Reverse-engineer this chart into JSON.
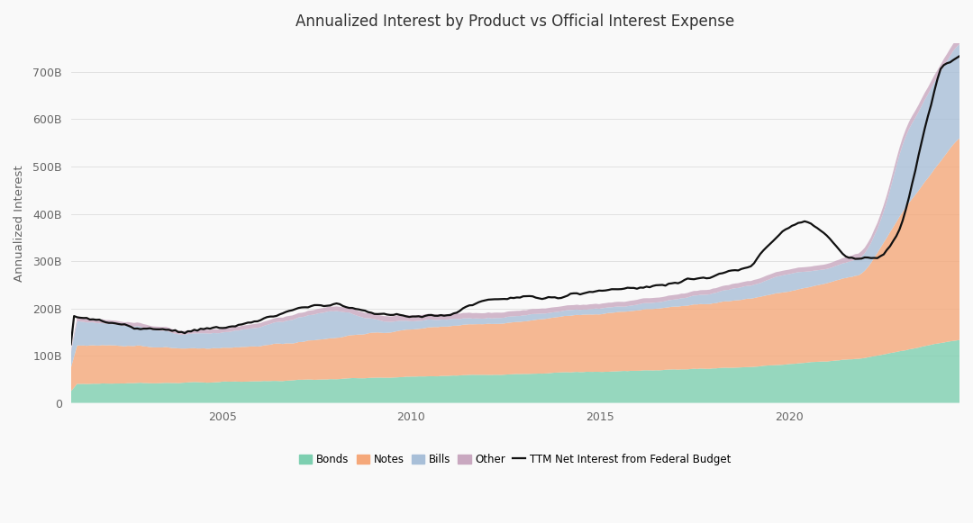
{
  "title": "Annualized Interest by Product vs Official Interest Expense",
  "ylabel": "Annualized Interest",
  "colors": {
    "bonds": "#7dcfb0",
    "notes": "#f5a87a",
    "bills": "#a8bfd8",
    "other": "#c9a8c0",
    "line": "#111111",
    "background": "#f9f9f9",
    "grid": "#dddddd"
  },
  "legend_labels": [
    "Bonds",
    "Notes",
    "Bills",
    "Other",
    "TTM Net Interest from Federal Budget"
  ],
  "xticks": [
    2005,
    2010,
    2015,
    2020
  ],
  "yticks": [
    0,
    100,
    200,
    300,
    400,
    500,
    600,
    700
  ],
  "ylim": [
    0,
    760
  ],
  "year_start": 2001.0,
  "year_end": 2024.5
}
